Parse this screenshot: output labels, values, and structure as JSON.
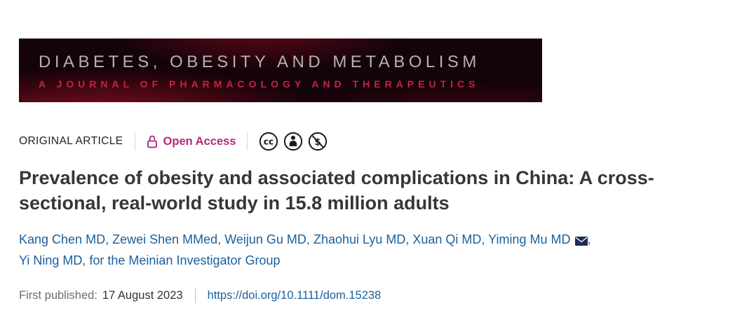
{
  "banner": {
    "journal_title": "DIABETES, OBESITY AND METABOLISM",
    "journal_subtitle": "A JOURNAL OF PHARMACOLOGY AND THERAPEUTICS"
  },
  "meta": {
    "article_type": "ORIGINAL ARTICLE",
    "open_access_label": "Open Access",
    "license_icons": [
      "cc-icon",
      "attribution-icon",
      "noncommercial-icon"
    ]
  },
  "article": {
    "title": "Prevalence of obesity and associated complications in China: A cross-sectional, real-world study in 15.8 million adults",
    "authors": [
      {
        "name": "Kang Chen MD"
      },
      {
        "name": "Zewei Shen MMed"
      },
      {
        "name": "Weijun Gu MD"
      },
      {
        "name": "Zhaohui Lyu MD"
      },
      {
        "name": "Xuan Qi MD"
      },
      {
        "name": "Yiming Mu MD",
        "corresponding": true
      },
      {
        "name": "Yi Ning MD"
      },
      {
        "name": "for the Meinian Investigator Group",
        "group": true
      }
    ],
    "first_published_label": "First published:",
    "first_published_date": "17 August 2023",
    "doi": "https://doi.org/10.1111/dom.15238"
  },
  "colors": {
    "open_access": "#b42a80",
    "link_blue": "#1b5f9d",
    "banner_bg": "#14030a",
    "banner_title": "#b6b0b4",
    "banner_subtitle": "#c1263e",
    "title_text": "#363636"
  }
}
